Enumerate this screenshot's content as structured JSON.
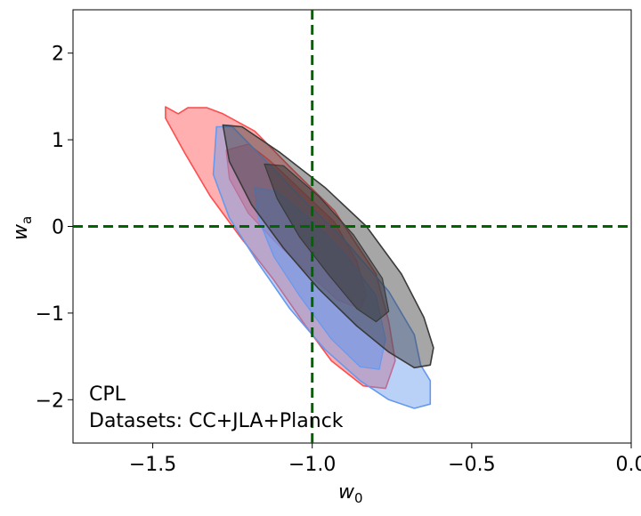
{
  "chart_data": {
    "type": "contour",
    "xlabel": "w",
    "xlabel_sub": "0",
    "ylabel": "w",
    "ylabel_sub": "a",
    "xlim": [
      -1.75,
      0.0
    ],
    "ylim": [
      -2.5,
      2.5
    ],
    "xticks": [
      -1.5,
      -1.0,
      -0.5,
      0.0
    ],
    "xtick_labels": [
      "−1.5",
      "−1.0",
      "−0.5",
      "0.0"
    ],
    "yticks": [
      2,
      1,
      0,
      -1,
      -2
    ],
    "ytick_labels": [
      "2",
      "1",
      "0",
      "−1",
      "−2"
    ],
    "reference_lines": {
      "x": -1.0,
      "y": 0.0,
      "color": "#006400",
      "style": "dashed"
    },
    "annotation": {
      "line1": "CPL",
      "line2": "Datasets: CC+JLA+Planck"
    },
    "series": [
      {
        "color": "#ff4d4d",
        "outer": [
          [
            -1.46,
            1.38
          ],
          [
            -1.42,
            1.3
          ],
          [
            -1.39,
            1.37
          ],
          [
            -1.33,
            1.37
          ],
          [
            -1.28,
            1.3
          ],
          [
            -1.18,
            1.1
          ],
          [
            -1.06,
            0.65
          ],
          [
            -0.93,
            0.18
          ],
          [
            -0.8,
            -0.55
          ],
          [
            -0.76,
            -1.1
          ],
          [
            -0.74,
            -1.55
          ],
          [
            -0.77,
            -1.87
          ],
          [
            -0.84,
            -1.84
          ],
          [
            -0.94,
            -1.55
          ],
          [
            -1.02,
            -1.15
          ],
          [
            -1.12,
            -0.62
          ],
          [
            -1.23,
            -0.1
          ],
          [
            -1.32,
            0.35
          ],
          [
            -1.4,
            0.85
          ],
          [
            -1.46,
            1.25
          ]
        ],
        "inner": [
          [
            -1.27,
            0.88
          ],
          [
            -1.2,
            0.95
          ],
          [
            -1.13,
            0.75
          ],
          [
            -1.03,
            0.4
          ],
          [
            -0.93,
            0.05
          ],
          [
            -0.86,
            -0.4
          ],
          [
            -0.83,
            -0.8
          ],
          [
            -0.85,
            -0.95
          ],
          [
            -0.92,
            -0.85
          ],
          [
            -1.01,
            -0.55
          ],
          [
            -1.11,
            -0.2
          ],
          [
            -1.2,
            0.15
          ],
          [
            -1.26,
            0.55
          ]
        ]
      },
      {
        "color": "#6699ee",
        "outer": [
          [
            -1.3,
            1.15
          ],
          [
            -1.25,
            1.15
          ],
          [
            -1.17,
            0.85
          ],
          [
            -1.04,
            0.35
          ],
          [
            -0.9,
            -0.15
          ],
          [
            -0.76,
            -0.75
          ],
          [
            -0.68,
            -1.25
          ],
          [
            -0.66,
            -1.6
          ],
          [
            -0.63,
            -1.78
          ],
          [
            -0.63,
            -2.05
          ],
          [
            -0.68,
            -2.1
          ],
          [
            -0.76,
            -2.0
          ],
          [
            -0.85,
            -1.78
          ],
          [
            -0.96,
            -1.42
          ],
          [
            -1.07,
            -0.95
          ],
          [
            -1.17,
            -0.42
          ],
          [
            -1.26,
            0.1
          ],
          [
            -1.31,
            0.6
          ]
        ],
        "inner": [
          [
            -1.18,
            0.45
          ],
          [
            -1.11,
            0.4
          ],
          [
            -1.01,
            0.1
          ],
          [
            -0.9,
            -0.3
          ],
          [
            -0.8,
            -0.8
          ],
          [
            -0.77,
            -1.3
          ],
          [
            -0.79,
            -1.65
          ],
          [
            -0.85,
            -1.62
          ],
          [
            -0.94,
            -1.3
          ],
          [
            -1.04,
            -0.8
          ],
          [
            -1.12,
            -0.35
          ],
          [
            -1.17,
            0.1
          ]
        ]
      },
      {
        "color": "#3a3a3a",
        "outer": [
          [
            -1.28,
            1.17
          ],
          [
            -1.22,
            1.15
          ],
          [
            -1.1,
            0.85
          ],
          [
            -0.96,
            0.45
          ],
          [
            -0.83,
            0.0
          ],
          [
            -0.72,
            -0.55
          ],
          [
            -0.65,
            -1.05
          ],
          [
            -0.62,
            -1.4
          ],
          [
            -0.63,
            -1.6
          ],
          [
            -0.68,
            -1.63
          ],
          [
            -0.76,
            -1.45
          ],
          [
            -0.86,
            -1.15
          ],
          [
            -0.98,
            -0.72
          ],
          [
            -1.09,
            -0.25
          ],
          [
            -1.19,
            0.25
          ],
          [
            -1.26,
            0.75
          ]
        ],
        "inner": [
          [
            -1.15,
            0.72
          ],
          [
            -1.09,
            0.7
          ],
          [
            -0.98,
            0.35
          ],
          [
            -0.87,
            -0.1
          ],
          [
            -0.78,
            -0.6
          ],
          [
            -0.76,
            -0.98
          ],
          [
            -0.8,
            -1.1
          ],
          [
            -0.86,
            -0.95
          ],
          [
            -0.95,
            -0.55
          ],
          [
            -1.04,
            -0.12
          ],
          [
            -1.11,
            0.32
          ]
        ]
      }
    ]
  }
}
